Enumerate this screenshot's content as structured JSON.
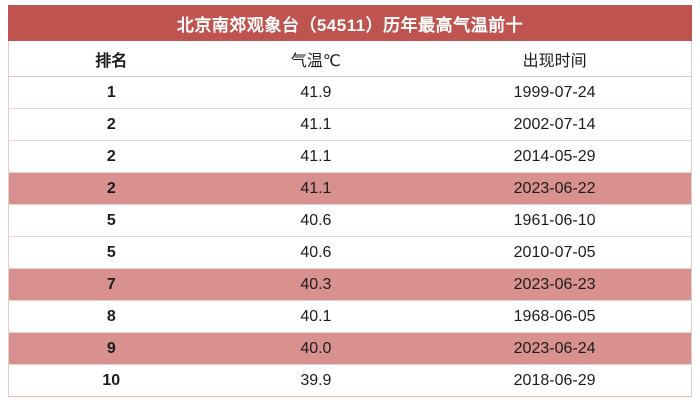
{
  "title": "北京南郊观象台（54511）历年最高气温前十",
  "colors": {
    "title_bar_bg": "#BF534F",
    "title_text": "#FFFFFF",
    "highlight_row_bg": "#D8918F",
    "row_border": "#ECD2CF",
    "text": "#1C1C1C"
  },
  "table": {
    "headers": [
      "排名",
      "气温℃",
      "出现时间"
    ],
    "rows": [
      {
        "rank": "1",
        "temp": "41.9",
        "date": "1999-07-24",
        "highlight": false
      },
      {
        "rank": "2",
        "temp": "41.1",
        "date": "2002-07-14",
        "highlight": false
      },
      {
        "rank": "2",
        "temp": "41.1",
        "date": "2014-05-29",
        "highlight": false
      },
      {
        "rank": "2",
        "temp": "41.1",
        "date": "2023-06-22",
        "highlight": true
      },
      {
        "rank": "5",
        "temp": "40.6",
        "date": "1961-06-10",
        "highlight": false
      },
      {
        "rank": "5",
        "temp": "40.6",
        "date": "2010-07-05",
        "highlight": false
      },
      {
        "rank": "7",
        "temp": "40.3",
        "date": "2023-06-23",
        "highlight": true
      },
      {
        "rank": "8",
        "temp": "40.1",
        "date": "1968-06-05",
        "highlight": false
      },
      {
        "rank": "9",
        "temp": "40.0",
        "date": "2023-06-24",
        "highlight": true
      },
      {
        "rank": "10",
        "temp": "39.9",
        "date": "2018-06-29",
        "highlight": false
      }
    ]
  },
  "chart_data": {
    "type": "table",
    "title": "北京南郊观象台（54511）历年最高气温前十",
    "columns": [
      "排名",
      "气温℃",
      "出现时间"
    ],
    "rows": [
      [
        "1",
        "41.9",
        "1999-07-24"
      ],
      [
        "2",
        "41.1",
        "2002-07-14"
      ],
      [
        "2",
        "41.1",
        "2014-05-29"
      ],
      [
        "2",
        "41.1",
        "2023-06-22"
      ],
      [
        "5",
        "40.6",
        "1961-06-10"
      ],
      [
        "5",
        "40.6",
        "2010-07-05"
      ],
      [
        "7",
        "40.3",
        "2023-06-23"
      ],
      [
        "8",
        "40.1",
        "1968-06-05"
      ],
      [
        "9",
        "40.0",
        "2023-06-24"
      ],
      [
        "10",
        "39.9",
        "2018-06-29"
      ]
    ],
    "highlighted_row_indices": [
      3,
      6,
      8
    ],
    "highlight_meaning": "records set in 2023",
    "temperatures_celsius": [
      41.9,
      41.1,
      41.1,
      41.1,
      40.6,
      40.6,
      40.3,
      40.1,
      40.0,
      39.9
    ]
  }
}
